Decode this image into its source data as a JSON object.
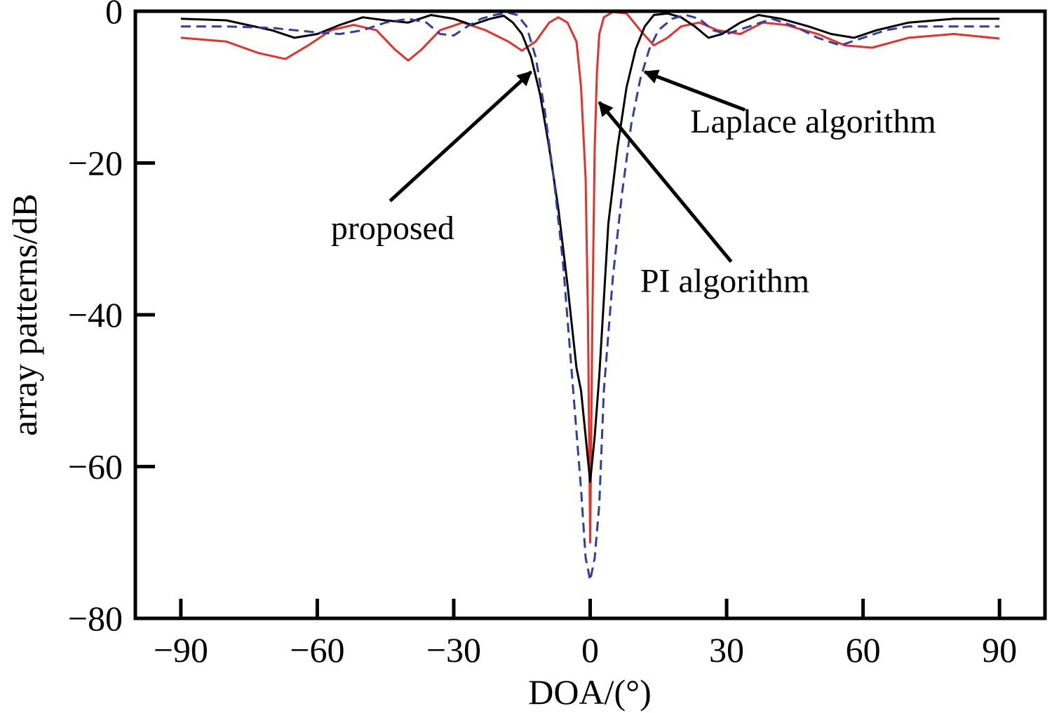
{
  "chart_data": {
    "type": "line",
    "title": "",
    "xlabel": "DOA/(°)",
    "ylabel": "array patterns/dB",
    "xlim": [
      -100,
      100
    ],
    "ylim": [
      -80,
      0
    ],
    "xticks": [
      -90,
      -60,
      -30,
      0,
      30,
      60,
      90
    ],
    "yticks": [
      0,
      -20,
      -40,
      -60,
      -80
    ],
    "xtick_labels": [
      "−90",
      "−60",
      "−30",
      "0",
      "30",
      "60",
      "90"
    ],
    "ytick_labels": [
      "0",
      "−20",
      "−40",
      "−60",
      "−80"
    ],
    "grid": false,
    "legend": "none",
    "series": [
      {
        "color": "#e8302a",
        "dash": "solid",
        "points": [
          [
            -90,
            -3.5
          ],
          [
            -80,
            -4
          ],
          [
            -73,
            -5.5
          ],
          [
            -67,
            -6.3
          ],
          [
            -62,
            -4.5
          ],
          [
            -57,
            -2.5
          ],
          [
            -52,
            -1.8
          ],
          [
            -47,
            -2.5
          ],
          [
            -43,
            -5
          ],
          [
            -40,
            -6.5
          ],
          [
            -37,
            -5
          ],
          [
            -33,
            -2.5
          ],
          [
            -28,
            -1.5
          ],
          [
            -23,
            -2.5
          ],
          [
            -18,
            -4
          ],
          [
            -15,
            -5.2
          ],
          [
            -12,
            -4
          ],
          [
            -9,
            -1.5
          ],
          [
            -7,
            -0.8
          ],
          [
            -5,
            -1.5
          ],
          [
            -3,
            -4
          ],
          [
            -2,
            -10
          ],
          [
            -1,
            -22
          ],
          [
            -0.5,
            -40
          ],
          [
            0,
            -70
          ],
          [
            0.5,
            -40
          ],
          [
            1,
            -18
          ],
          [
            1.5,
            -8
          ],
          [
            2,
            -3
          ],
          [
            3,
            -0.8
          ],
          [
            5,
            -0.1
          ],
          [
            8,
            -0.3
          ],
          [
            11,
            -2.5
          ],
          [
            14,
            -4.5
          ],
          [
            17,
            -3.5
          ],
          [
            20,
            -2
          ],
          [
            24,
            -1.5
          ],
          [
            28,
            -2.5
          ],
          [
            33,
            -3
          ],
          [
            38,
            -1.5
          ],
          [
            43,
            -1.8
          ],
          [
            50,
            -3
          ],
          [
            56,
            -4.5
          ],
          [
            62,
            -4.8
          ],
          [
            70,
            -3.5
          ],
          [
            80,
            -3
          ],
          [
            90,
            -3.6
          ]
        ]
      },
      {
        "color": "#000000",
        "dash": "solid",
        "points": [
          [
            -90,
            -1
          ],
          [
            -80,
            -1.2
          ],
          [
            -70,
            -2.5
          ],
          [
            -65,
            -3.5
          ],
          [
            -60,
            -3
          ],
          [
            -55,
            -1.8
          ],
          [
            -50,
            -0.8
          ],
          [
            -45,
            -1.2
          ],
          [
            -40,
            -1.5
          ],
          [
            -35,
            -0.5
          ],
          [
            -30,
            -1
          ],
          [
            -26,
            -1.8
          ],
          [
            -22,
            -1
          ],
          [
            -19,
            -0.6
          ],
          [
            -17,
            -1.5
          ],
          [
            -15,
            -3
          ],
          [
            -13,
            -6
          ],
          [
            -11,
            -11
          ],
          [
            -9,
            -18
          ],
          [
            -7,
            -26
          ],
          [
            -5,
            -36
          ],
          [
            -3,
            -47
          ],
          [
            -2,
            -50
          ],
          [
            -1,
            -56
          ],
          [
            0,
            -62
          ],
          [
            1,
            -56
          ],
          [
            2,
            -48
          ],
          [
            3,
            -38
          ],
          [
            4,
            -28
          ],
          [
            6,
            -18
          ],
          [
            8,
            -10
          ],
          [
            10,
            -5
          ],
          [
            12,
            -2
          ],
          [
            14,
            -0.5
          ],
          [
            17,
            -0.3
          ],
          [
            20,
            -0.8
          ],
          [
            23,
            -2
          ],
          [
            26,
            -3.5
          ],
          [
            29,
            -3
          ],
          [
            33,
            -1.5
          ],
          [
            37,
            -0.5
          ],
          [
            42,
            -1
          ],
          [
            48,
            -2
          ],
          [
            53,
            -3
          ],
          [
            58,
            -3.5
          ],
          [
            63,
            -2.5
          ],
          [
            70,
            -1.5
          ],
          [
            80,
            -1
          ],
          [
            90,
            -1
          ]
        ]
      },
      {
        "color": "#2f3fa0",
        "dash": "dashed",
        "points": [
          [
            -90,
            -2
          ],
          [
            -80,
            -2
          ],
          [
            -70,
            -2.2
          ],
          [
            -60,
            -2.8
          ],
          [
            -55,
            -3
          ],
          [
            -50,
            -2.5
          ],
          [
            -45,
            -1.5
          ],
          [
            -40,
            -1
          ],
          [
            -36,
            -1.5
          ],
          [
            -33,
            -3
          ],
          [
            -30,
            -3.2
          ],
          [
            -27,
            -2
          ],
          [
            -24,
            -1
          ],
          [
            -21,
            -0.5
          ],
          [
            -18,
            -0.2
          ],
          [
            -16,
            -0.5
          ],
          [
            -14,
            -2
          ],
          [
            -12,
            -6
          ],
          [
            -10,
            -13
          ],
          [
            -8,
            -22
          ],
          [
            -6,
            -33
          ],
          [
            -4,
            -48
          ],
          [
            -2,
            -63
          ],
          [
            -1,
            -72
          ],
          [
            0,
            -75
          ],
          [
            1,
            -72
          ],
          [
            2,
            -65
          ],
          [
            3,
            -50
          ],
          [
            5,
            -35
          ],
          [
            7,
            -24
          ],
          [
            9,
            -15
          ],
          [
            11,
            -9
          ],
          [
            13,
            -5
          ],
          [
            15,
            -2.5
          ],
          [
            18,
            -1
          ],
          [
            21,
            -0.5
          ],
          [
            24,
            -1
          ],
          [
            27,
            -2.5
          ],
          [
            30,
            -3
          ],
          [
            35,
            -2
          ],
          [
            40,
            -1
          ],
          [
            45,
            -2
          ],
          [
            50,
            -3.5
          ],
          [
            55,
            -4.5
          ],
          [
            60,
            -3.5
          ],
          [
            65,
            -2.5
          ],
          [
            70,
            -2
          ],
          [
            80,
            -2
          ],
          [
            90,
            -2
          ]
        ]
      }
    ],
    "annotations": [
      {
        "text": "proposed",
        "target": [
          -13,
          -8
        ],
        "from": [
          -44,
          -25
        ],
        "text_at": [
          -57,
          -30
        ]
      },
      {
        "text": "PI algorithm",
        "target": [
          2,
          -12
        ],
        "from": [
          31,
          -33
        ],
        "text_at": [
          11,
          -37
        ]
      },
      {
        "text": "Laplace algorithm",
        "target": [
          12,
          -8
        ],
        "from": [
          34,
          -13
        ],
        "text_at": [
          22,
          -16
        ]
      }
    ]
  }
}
